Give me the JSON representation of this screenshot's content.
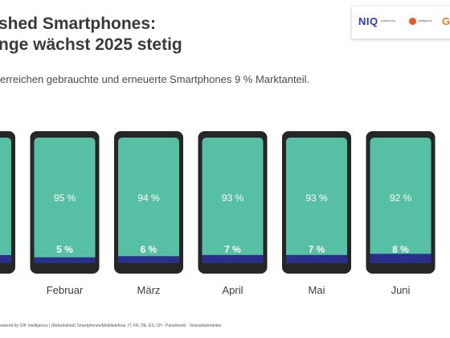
{
  "header": {
    "title_line1": "shed Smartphones:",
    "title_line2": "nge wächst 2025 stetig",
    "subtitle": "erreichen gebrauchte und erneuerte Smartphones 9 % Marktanteil."
  },
  "logos": {
    "niq": "NIQ",
    "powered_by": "powered by",
    "gfk_small": "Intelligence",
    "gfk": "GFU"
  },
  "colors": {
    "phone_body": "#262626",
    "screen": "#57bfa3",
    "bar": "#2b2f8c",
    "share_new_text": "#ffffff",
    "share_refurb_text": "#ffffff"
  },
  "chart_data": {
    "type": "bar",
    "categories": [
      "",
      "Februar",
      "März",
      "April",
      "Mai",
      "Juni"
    ],
    "series": [
      {
        "values": [
          null,
          95,
          94,
          93,
          93,
          92
        ],
        "labels": [
          "",
          "95 %",
          "94 %",
          "93 %",
          "93 %",
          "92 %"
        ]
      },
      {
        "values": [
          null,
          5,
          6,
          7,
          7,
          8
        ],
        "labels": [
          "",
          "5 %",
          "6 %",
          "7 %",
          "7 %",
          "8 %"
        ]
      }
    ]
  },
  "footer": {
    "source": "owered by GfK Intelligence | (Refurbished) Smartphones/Mobiltelefone, IT, FR, DE, ES, CH · Panelmarkt · Verkaufseinheiten"
  }
}
